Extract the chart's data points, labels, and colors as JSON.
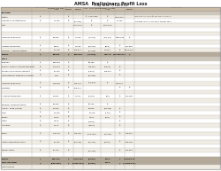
{
  "title1": "AMSA  Preliminary Profit Loss",
  "title2": "May and YTD 2014",
  "header_bg": "#c9bba5",
  "alt_row_bg": "#f0ece4",
  "white_row_bg": "#ffffff",
  "section_bg": "#cec7bc",
  "total_bg": "#b5aa9a",
  "net_bg": "#b5aa9a",
  "fig_bg": "#ffffff",
  "border_color": "#999999",
  "text_color": "#111111",
  "comment_color": "#333333"
}
